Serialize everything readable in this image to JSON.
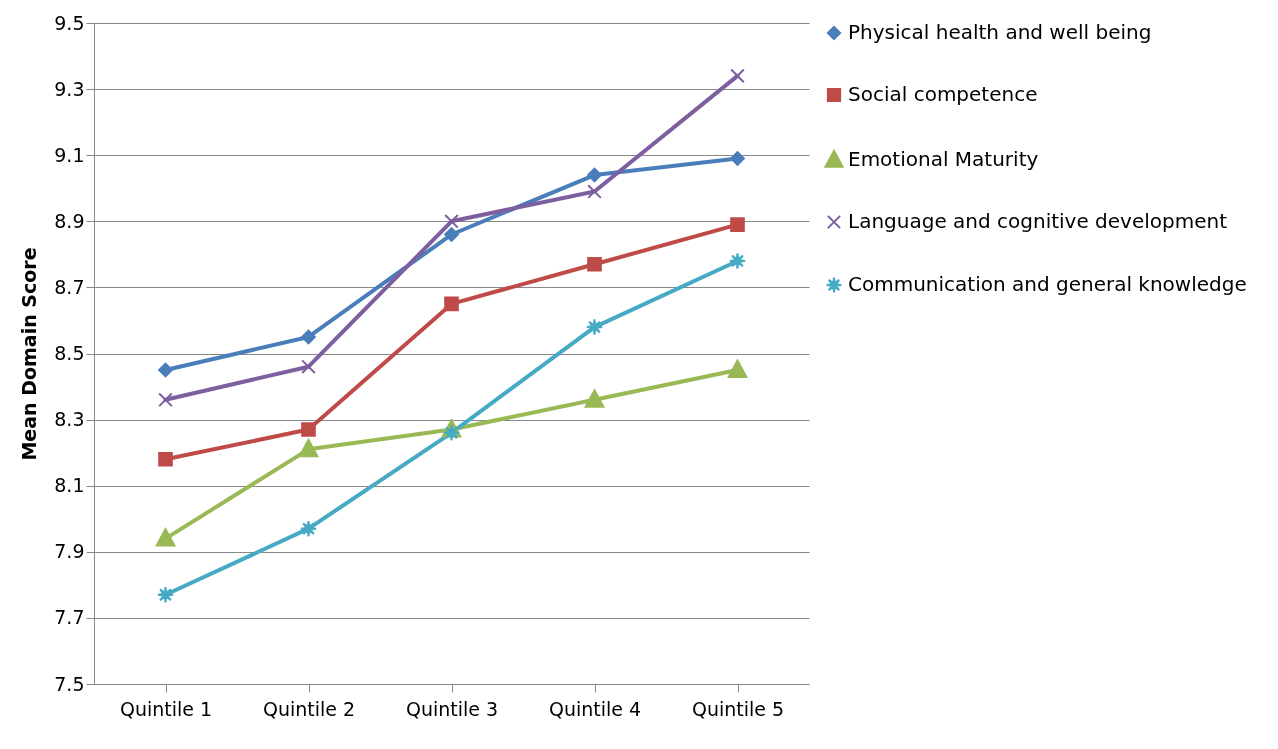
{
  "chart_data": {
    "type": "line",
    "ylabel": "Mean Domain Score",
    "categories": [
      "Quintile 1",
      "Quintile 2",
      "Quintile 3",
      "Quintile 4",
      "Quintile 5"
    ],
    "ylim": [
      7.5,
      9.5
    ],
    "yticks": [
      7.5,
      7.7,
      7.9,
      8.1,
      8.3,
      8.5,
      8.7,
      8.9,
      9.1,
      9.3,
      9.5
    ],
    "grid": "y",
    "legend": "right",
    "series": [
      {
        "name": "Physical health and well being",
        "color": "#4a7ebb",
        "marker": "diamond",
        "values": [
          8.45,
          8.55,
          8.86,
          9.04,
          9.09
        ]
      },
      {
        "name": "Social competence",
        "color": "#be4b48",
        "marker": "square",
        "values": [
          8.18,
          8.27,
          8.65,
          8.77,
          8.89
        ]
      },
      {
        "name": "Emotional Maturity",
        "color": "#98b954",
        "marker": "triangle",
        "values": [
          7.94,
          8.21,
          8.27,
          8.36,
          8.45
        ]
      },
      {
        "name": "Language and cognitive development",
        "color": "#7d5fa0",
        "marker": "cross",
        "values": [
          8.36,
          8.46,
          8.9,
          8.99,
          9.34
        ]
      },
      {
        "name": "Communication and general knowledge",
        "color": "#46aac5",
        "marker": "star",
        "values": [
          7.77,
          7.97,
          8.26,
          8.58,
          8.78
        ]
      }
    ]
  }
}
